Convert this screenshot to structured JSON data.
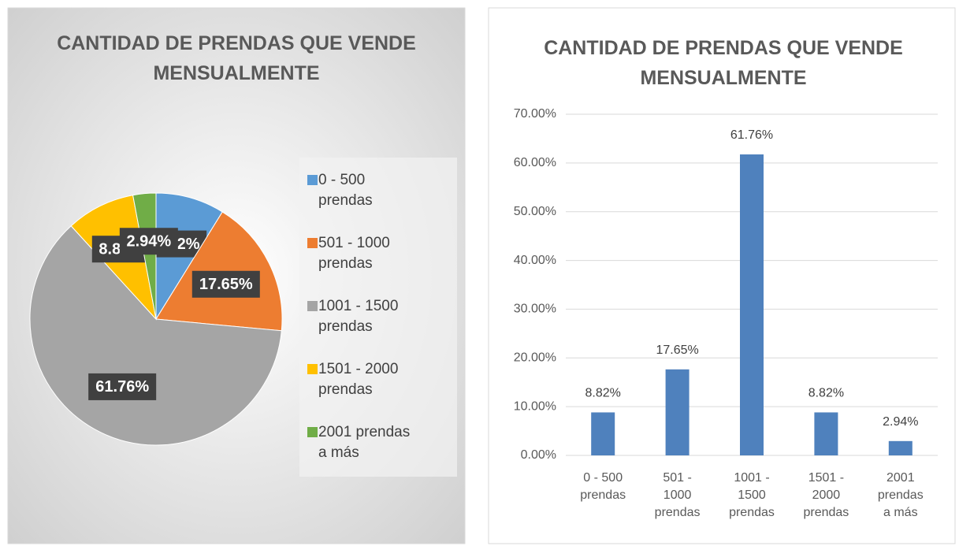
{
  "chart_data": [
    {
      "type": "pie",
      "title": "CANTIDAD DE PRENDAS QUE VENDE MENSUALMENTE",
      "categories": [
        "0 - 500 prendas",
        "501 - 1000 prendas",
        "1001 - 1500 prendas",
        "1501 - 2000 prendas",
        "2001 prendas a más"
      ],
      "values": [
        8.82,
        17.65,
        61.76,
        8.82,
        2.94
      ],
      "value_labels": [
        "8.82%",
        "17.65%",
        "61.76%",
        "8.82%",
        "2.94%"
      ],
      "colors": [
        "#5b9bd5",
        "#ed7d31",
        "#a5a5a5",
        "#ffc000",
        "#70ad47"
      ],
      "legend": "right"
    },
    {
      "type": "bar",
      "title": "CANTIDAD DE PRENDAS QUE VENDE MENSUALMENTE",
      "categories": [
        "0 - 500 prendas",
        "501 - 1000 prendas",
        "1001 - 1500 prendas",
        "1501 - 2000 prendas",
        "2001 prendas a más"
      ],
      "values": [
        8.82,
        17.65,
        61.76,
        8.82,
        2.94
      ],
      "value_labels": [
        "8.82%",
        "17.65%",
        "61.76%",
        "8.82%",
        "2.94%"
      ],
      "color": "#4f81bd",
      "ylim": [
        0,
        70
      ],
      "yticks": [
        {
          "value": 0,
          "label": "0.00%"
        },
        {
          "value": 10,
          "label": "10.00%"
        },
        {
          "value": 20,
          "label": "20.00%"
        },
        {
          "value": 30,
          "label": "30.00%"
        },
        {
          "value": 40,
          "label": "40.00%"
        },
        {
          "value": 50,
          "label": "50.00%"
        },
        {
          "value": 60,
          "label": "60.00%"
        },
        {
          "value": 70,
          "label": "70.00%"
        }
      ],
      "grid": true
    }
  ]
}
